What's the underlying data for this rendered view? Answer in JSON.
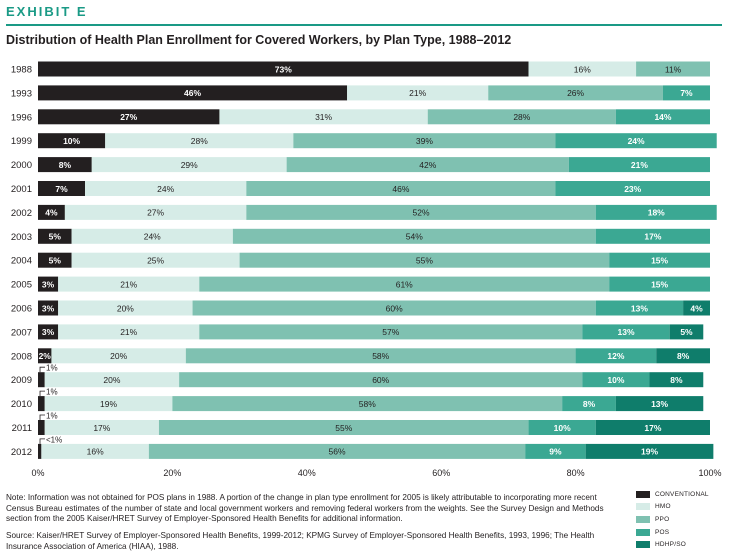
{
  "header": {
    "exhibit": "EXHIBIT E",
    "title": "Distribution of Health Plan Enrollment for Covered Workers, by Plan Type, 1988–2012"
  },
  "chart_data": {
    "type": "bar",
    "orientation": "horizontal",
    "stacked": true,
    "categories": [
      "1988",
      "1993",
      "1996",
      "1999",
      "2000",
      "2001",
      "2002",
      "2003",
      "2004",
      "2005",
      "2006",
      "2007",
      "2008",
      "2009",
      "2010",
      "2011",
      "2012"
    ],
    "series": [
      {
        "name": "CONVENTIONAL",
        "color": "#231f20",
        "values": [
          73,
          46,
          27,
          10,
          8,
          7,
          4,
          5,
          5,
          3,
          3,
          3,
          2,
          1,
          1,
          1,
          0.5
        ],
        "labels": [
          "73%",
          "46%",
          "27%",
          "10%",
          "8%",
          "7%",
          "4%",
          "5%",
          "5%",
          "3%",
          "3%",
          "3%",
          "2%",
          "1%",
          "1%",
          "1%",
          "<1%"
        ]
      },
      {
        "name": "HMO",
        "color": "#d6ece7",
        "values": [
          16,
          21,
          31,
          28,
          29,
          24,
          27,
          24,
          25,
          21,
          20,
          21,
          20,
          20,
          19,
          17,
          16
        ],
        "labels": [
          "16%",
          "21%",
          "31%",
          "28%",
          "29%",
          "24%",
          "27%",
          "24%",
          "25%",
          "21%",
          "20%",
          "21%",
          "20%",
          "20%",
          "19%",
          "17%",
          "16%"
        ]
      },
      {
        "name": "PPO",
        "color": "#7fc1b1",
        "values": [
          11,
          26,
          28,
          39,
          42,
          46,
          52,
          54,
          55,
          61,
          60,
          57,
          58,
          60,
          58,
          55,
          56
        ],
        "labels": [
          "11%",
          "26%",
          "28%",
          "39%",
          "42%",
          "46%",
          "52%",
          "54%",
          "55%",
          "61%",
          "60%",
          "57%",
          "58%",
          "60%",
          "58%",
          "55%",
          "56%"
        ]
      },
      {
        "name": "POS",
        "color": "#3ba893",
        "values": [
          0,
          7,
          14,
          24,
          21,
          23,
          18,
          17,
          15,
          15,
          13,
          13,
          12,
          10,
          8,
          10,
          9
        ],
        "labels": [
          "",
          "7%",
          "14%",
          "24%",
          "21%",
          "23%",
          "18%",
          "17%",
          "15%",
          "15%",
          "13%",
          "13%",
          "12%",
          "10%",
          "8%",
          "10%",
          "9%"
        ]
      },
      {
        "name": "HDHP/SO",
        "color": "#0f7d6b",
        "values": [
          0,
          0,
          0,
          0,
          0,
          0,
          0,
          0,
          0,
          0,
          4,
          5,
          8,
          8,
          13,
          17,
          19
        ],
        "labels": [
          "",
          "",
          "",
          "",
          "",
          "",
          "",
          "",
          "",
          "",
          "4%",
          "5%",
          "8%",
          "8%",
          "13%",
          "17%",
          "19%"
        ]
      }
    ],
    "xlim": [
      0,
      100
    ],
    "xticks": [
      "0%",
      "20%",
      "40%",
      "60%",
      "80%",
      "100%"
    ],
    "grid": false,
    "legend": "bottom-right"
  },
  "legend": [
    {
      "label": "CONVENTIONAL",
      "color": "#231f20"
    },
    {
      "label": "HMO",
      "color": "#d6ece7"
    },
    {
      "label": "PPO",
      "color": "#7fc1b1"
    },
    {
      "label": "POS",
      "color": "#3ba893"
    },
    {
      "label": "HDHP/SO",
      "color": "#0f7d6b"
    }
  ],
  "footer": {
    "note": "Note: Information was not obtained for POS plans in 1988. A portion of the change in plan type enrollment for 2005 is likely attributable to incorporating more recent Census Bureau estimates of the number of state and local government workers and removing federal workers from the weights. See the Survey Design and Methods section from the 2005 Kaiser/HRET Survey of Employer-Sponsored Health Benefits for additional information.",
    "source": "Source: Kaiser/HRET Survey of Employer-Sponsored Health Benefits, 1999-2012; KPMG Survey of Employer-Sponsored Health Benefits, 1993, 1996; The Health Insurance Association of America (HIAA), 1988."
  }
}
